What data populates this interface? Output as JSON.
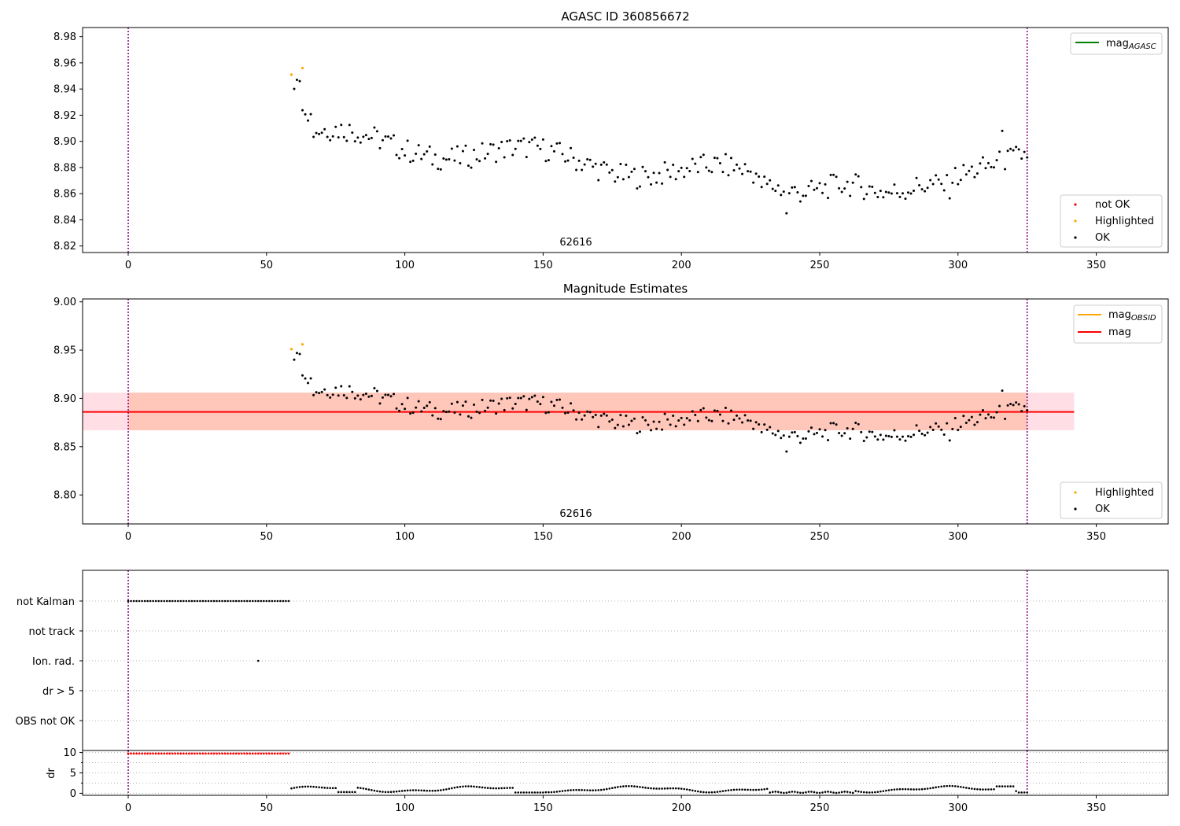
{
  "colors": {
    "ok": "#000000",
    "highlighted": "#ffa500",
    "not_ok": "#ff0000",
    "mag_line": "#ff0000",
    "mag_obsid": "#ffa500",
    "mag_agasc": "#008000",
    "band_pink": "#ffc0cb",
    "band_orange": "#ffa07a",
    "vline": "#800080",
    "grid": "#b0b0b0"
  },
  "chart_data": [
    {
      "type": "scatter",
      "title": "AGASC ID 360856672",
      "xlim": [
        -16.5,
        376
      ],
      "ylim": [
        8.815,
        8.987
      ],
      "x_ticks": [
        0,
        50,
        100,
        150,
        200,
        250,
        300,
        350
      ],
      "y_ticks": [
        8.82,
        8.84,
        8.86,
        8.88,
        8.9,
        8.92,
        8.94,
        8.96,
        8.98
      ],
      "y_tick_labels": [
        "8.82",
        "8.84",
        "8.86",
        "8.88",
        "8.90",
        "8.92",
        "8.94",
        "8.96",
        "8.98"
      ],
      "obsid_boundaries": [
        0,
        325
      ],
      "annotation": {
        "text": "62616",
        "x": 162.5
      },
      "legend_lines": [
        {
          "label": "mag",
          "sub": "AGASC",
          "color": "#008000"
        }
      ],
      "legend_markers": [
        {
          "label": "not OK",
          "color": "#ff0000"
        },
        {
          "label": "Highlighted",
          "color": "#ffa500"
        },
        {
          "label": "OK",
          "color": "#000000"
        }
      ],
      "highlighted_points": [
        [
          59,
          8.951
        ],
        [
          63,
          8.956
        ]
      ],
      "mag_agasc": null
    },
    {
      "type": "scatter",
      "title": "Magnitude Estimates",
      "xlim": [
        -16.5,
        376
      ],
      "ylim": [
        8.77,
        9.003
      ],
      "x_ticks": [
        0,
        50,
        100,
        150,
        200,
        250,
        300,
        350
      ],
      "y_ticks": [
        8.8,
        8.85,
        8.9,
        8.95,
        9.0
      ],
      "y_tick_labels": [
        "8.80",
        "8.85",
        "8.90",
        "8.95",
        "9.00"
      ],
      "obsid_boundaries": [
        0,
        325
      ],
      "annotation": {
        "text": "62616",
        "x": 162.5
      },
      "mag": 8.886,
      "band_pink": {
        "x0": -16.5,
        "x1": 342,
        "y0": 8.867,
        "y1": 8.906
      },
      "band_orange": {
        "x0": 0,
        "x1": 325,
        "y0": 8.867,
        "y1": 8.906
      },
      "legend_lines": [
        {
          "label": "mag",
          "sub": "OBSID",
          "color": "#ffa500"
        },
        {
          "label": "mag",
          "sub": "",
          "color": "#ff0000"
        }
      ],
      "legend_markers": [
        {
          "label": "Highlighted",
          "color": "#ffa500"
        },
        {
          "label": "OK",
          "color": "#000000"
        }
      ],
      "highlighted_points": [
        [
          59,
          8.951
        ],
        [
          63,
          8.956
        ]
      ]
    },
    {
      "type": "scatter",
      "title": "",
      "xlim": [
        -16.5,
        376
      ],
      "categories": [
        "not Kalman",
        "not track",
        "Ion. rad.",
        "dr > 5",
        "OBS not OK"
      ],
      "obsid_boundaries": [
        0,
        325
      ],
      "not_kalman_range": [
        0,
        58
      ],
      "ion_rad_points": [
        47
      ]
    },
    {
      "type": "scatter",
      "ylabel": "dr",
      "xlim": [
        -16.5,
        376
      ],
      "ylim": [
        -0.5,
        10.5
      ],
      "x_ticks": [
        0,
        50,
        100,
        150,
        200,
        250,
        300,
        350
      ],
      "y_ticks": [
        0,
        5,
        10
      ],
      "y_tick_labels": [
        "0",
        "5",
        "10"
      ],
      "y_minor_ticks": [
        2.5,
        7.5
      ],
      "obsid_boundaries": [
        0,
        325
      ],
      "not_ok_range": [
        0,
        58
      ],
      "not_ok_value": 9.75
    }
  ]
}
